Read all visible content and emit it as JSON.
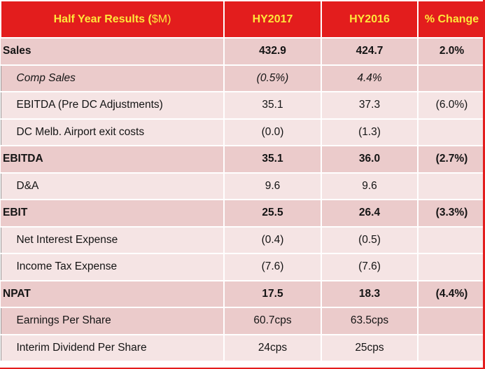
{
  "header": {
    "label_prefix": "Half Year Results (",
    "label_dollar": "$",
    "label_suffix": "M)",
    "col1": "HY2017",
    "col2": "HY2016",
    "col3": "% Change"
  },
  "rows": [
    {
      "label": "Sales",
      "hy2017": "432.9",
      "hy2016": "424.7",
      "change": "2.0%"
    },
    {
      "label": "Comp Sales",
      "hy2017": "(0.5%)",
      "hy2016": "4.4%",
      "change": ""
    },
    {
      "label": "EBITDA (Pre DC Adjustments)",
      "hy2017": "35.1",
      "hy2016": "37.3",
      "change": "(6.0%)"
    },
    {
      "label": "DC Melb. Airport exit costs",
      "hy2017": "(0.0)",
      "hy2016": "(1.3)",
      "change": ""
    },
    {
      "label": "EBITDA",
      "hy2017": "35.1",
      "hy2016": "36.0",
      "change": "(2.7%)"
    },
    {
      "label": "D&A",
      "hy2017": "9.6",
      "hy2016": "9.6",
      "change": ""
    },
    {
      "label": "EBIT",
      "hy2017": "25.5",
      "hy2016": "26.4",
      "change": "(3.3%)"
    },
    {
      "label": "Net Interest Expense",
      "hy2017": "(0.4)",
      "hy2016": "(0.5)",
      "change": ""
    },
    {
      "label": "Income Tax Expense",
      "hy2017": "(7.6)",
      "hy2016": "(7.6)",
      "change": ""
    },
    {
      "label": "NPAT",
      "hy2017": "17.5",
      "hy2016": "18.3",
      "change": "(4.4%)"
    },
    {
      "label": "Earnings Per Share",
      "hy2017": "60.7cps",
      "hy2016": "63.5cps",
      "change": ""
    },
    {
      "label": "Interim Dividend Per Share",
      "hy2017": "24cps",
      "hy2016": "25cps",
      "change": ""
    }
  ],
  "colors": {
    "header_bg": "#e31d1d",
    "header_text": "#ffe73a",
    "row_dark": "#ebcbcb",
    "row_light": "#f5e4e4"
  }
}
